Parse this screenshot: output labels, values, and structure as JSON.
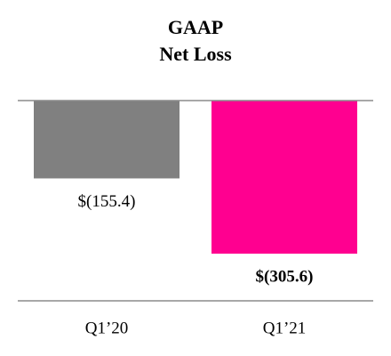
{
  "chart_data": {
    "type": "bar",
    "title": "GAAP",
    "subtitle": "Net Loss",
    "categories": [
      "Q1’20",
      "Q1’21"
    ],
    "values": [
      -155.4,
      -305.6
    ],
    "value_labels": [
      "$(155.4)",
      "$(305.6)"
    ],
    "colors": [
      "#808080",
      "#ff0090"
    ]
  }
}
